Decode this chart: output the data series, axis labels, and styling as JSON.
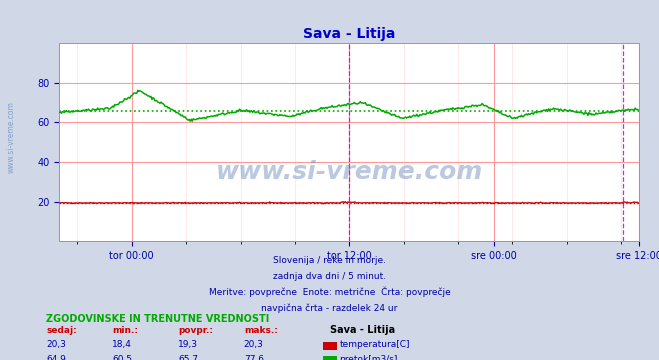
{
  "title": "Sava - Litija",
  "title_color": "#0000cc",
  "bg_color": "#d0d8e8",
  "plot_bg_color": "#ffffff",
  "grid_color_major": "#ff9999",
  "grid_color_minor": "#ffdddd",
  "xlabel_color": "#0000aa",
  "text_color": "#0000aa",
  "xlim": [
    0,
    576
  ],
  "ylim": [
    0,
    100
  ],
  "yticks": [
    20,
    40,
    60,
    80
  ],
  "temp_color": "#cc0000",
  "flow_color": "#00aa00",
  "avg_temp": 19.3,
  "avg_flow": 65.7,
  "vline_color": "#cc00cc",
  "vline_positions": [
    288,
    560
  ],
  "x_tick_positions": [
    72,
    288,
    432,
    576
  ],
  "x_tick_labels": [
    "tor 00:00",
    "tor 12:00",
    "sre 00:00",
    "sre 12:00"
  ],
  "watermark_text": "www.si-vreme.com",
  "watermark_color": "#6688bb",
  "watermark_alpha": 0.45,
  "footer_lines": [
    "Slovenija / reke in morje.",
    "zadnja dva dni / 5 minut.",
    "Meritve: povprečne  Enote: metrične  Črta: povprečje",
    "navpična črta - razdelek 24 ur"
  ],
  "footer_color": "#0000aa",
  "table_header": "ZGODOVINSKE IN TRENUTNE VREDNOSTI",
  "table_cols": [
    "sedaj:",
    "min.:",
    "povpr.:",
    "maks.:"
  ],
  "table_temp": [
    20.3,
    18.4,
    19.3,
    20.3
  ],
  "table_flow": [
    64.9,
    60.5,
    65.7,
    77.6
  ],
  "table_label": "Sava - Litija",
  "label_temp": "temperatura[C]",
  "label_flow": "pretok[m3/s]",
  "sidebar_text": "www.si-vreme.com",
  "sidebar_color": "#6688bb"
}
